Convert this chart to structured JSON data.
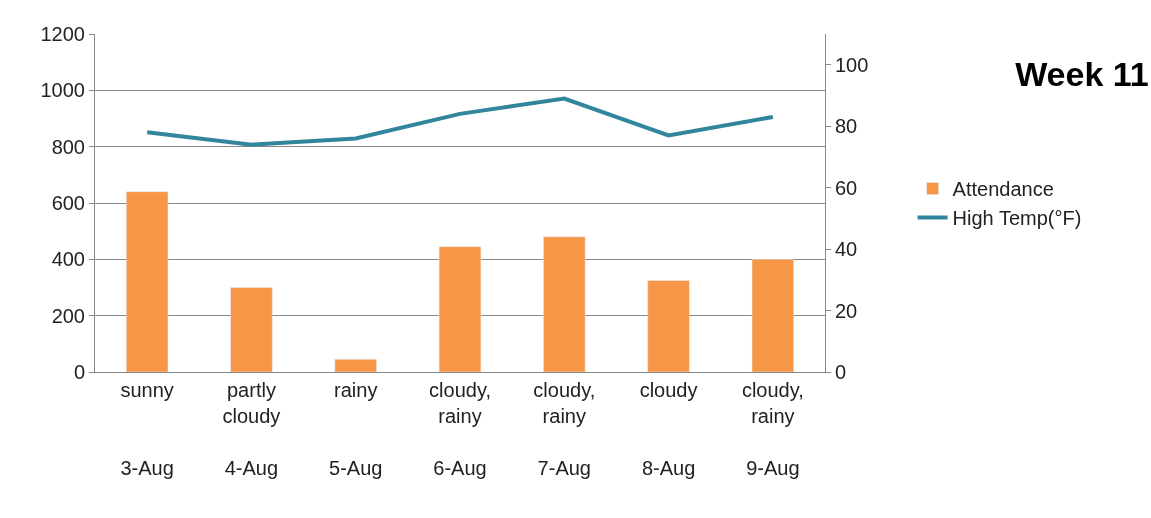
{
  "chart_data": {
    "type": "bar",
    "title": "Week 11",
    "categories": [
      "sunny\n3-Aug",
      "partly cloudy\n4-Aug",
      "rainy\n5-Aug",
      "cloudy, rainy\n6-Aug",
      "cloudy, rainy\n7-Aug",
      "cloudy\n8-Aug",
      "cloudy, rainy\n9-Aug"
    ],
    "series": [
      {
        "name": "Attendance",
        "color": "#f79646",
        "values": [
          640,
          300,
          45,
          445,
          480,
          325,
          400
        ]
      },
      {
        "name": "High Temp(°F)",
        "type": "line",
        "axis": "y2",
        "color": "#31859c",
        "values": [
          78,
          74,
          76,
          84,
          89,
          77,
          83
        ]
      }
    ],
    "ylim": [
      0,
      1200
    ],
    "yticks": [
      0,
      200,
      400,
      600,
      800,
      1000,
      1200
    ],
    "y2lim": [
      0,
      110
    ],
    "y2ticks": [
      0,
      20,
      40,
      60,
      80,
      100
    ],
    "grid": "y",
    "legend": "right",
    "marker": "none",
    "line_style": "solid"
  }
}
